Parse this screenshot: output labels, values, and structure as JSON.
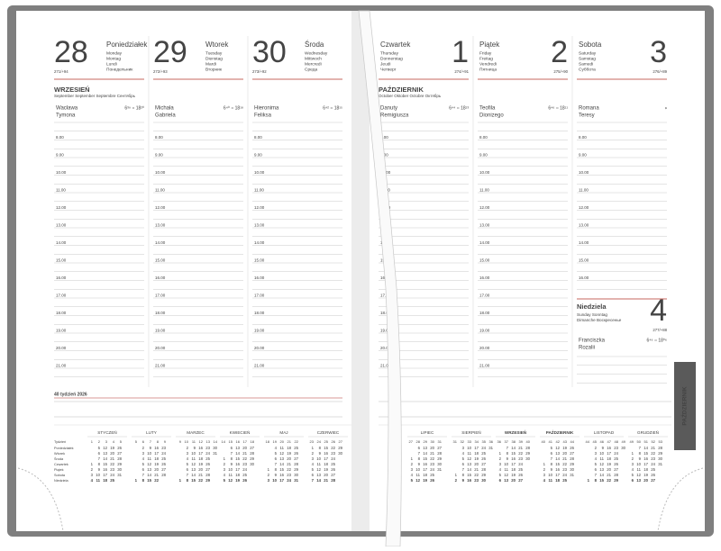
{
  "hours": [
    "8.00",
    "9.00",
    "10.00",
    "11.00",
    "12.00",
    "13.00",
    "14.00",
    "15.00",
    "16.00",
    "17.00",
    "18.00",
    "19.00",
    "20.00",
    "21.00"
  ],
  "left_page": {
    "days": [
      {
        "number": 28,
        "name": "Poniedziałek",
        "translations": [
          "Monday",
          "Montag",
          "Lundi",
          "Понедельник"
        ],
        "code": "271/+94",
        "names": [
          "Wacława",
          "Tymona"
        ],
        "sun": "6³⁹ ○ 18²⁰"
      },
      {
        "number": 29,
        "name": "Wtorek",
        "translations": [
          "Tuesday",
          "Dienstag",
          "Mardi",
          "Вторник"
        ],
        "code": "272/+93",
        "names": [
          "Michała",
          "Gabriela"
        ],
        "sun": "6⁴⁰ ○ 18¹⁸"
      },
      {
        "number": 30,
        "name": "Środa",
        "translations": [
          "Wednesday",
          "Mittwoch",
          "Mercredi",
          "Среда"
        ],
        "code": "273/+92",
        "names": [
          "Hieronima",
          "Feliksa"
        ],
        "sun": "6⁴² ○ 18¹⁵"
      }
    ],
    "month": {
      "title": "WRZESIEŃ",
      "translations": "September September Septembre Сентябрь"
    },
    "week_label": "40 tydzień 2026",
    "calendar": {
      "week_label": "Tydzień",
      "weekdays": [
        "Poniedziałek",
        "Wtorek",
        "Środa",
        "Czwartek",
        "Piątek",
        "Sobota",
        "Niedziela"
      ],
      "months": [
        {
          "title": "STYCZEŃ",
          "weeks": [
            1,
            2,
            3,
            4,
            5
          ],
          "days": [
            [
              null,
              5,
              12,
              19,
              26
            ],
            [
              null,
              6,
              13,
              20,
              27
            ],
            [
              null,
              7,
              14,
              21,
              28
            ],
            [
              1,
              8,
              15,
              22,
              29
            ],
            [
              2,
              9,
              16,
              23,
              30
            ],
            [
              3,
              10,
              17,
              24,
              31
            ],
            [
              4,
              11,
              18,
              25,
              null
            ]
          ]
        },
        {
          "title": "LUTY",
          "weeks": [
            5,
            6,
            7,
            8,
            9
          ],
          "days": [
            [
              null,
              2,
              9,
              16,
              23
            ],
            [
              null,
              3,
              10,
              17,
              24
            ],
            [
              null,
              4,
              11,
              18,
              25
            ],
            [
              null,
              5,
              12,
              19,
              26
            ],
            [
              null,
              6,
              13,
              20,
              27
            ],
            [
              null,
              7,
              14,
              21,
              28
            ],
            [
              1,
              8,
              15,
              22,
              null
            ]
          ]
        },
        {
          "title": "MARZEC",
          "weeks": [
            9,
            10,
            11,
            12,
            13,
            14
          ],
          "days": [
            [
              null,
              2,
              9,
              16,
              23,
              30
            ],
            [
              null,
              3,
              10,
              17,
              24,
              31
            ],
            [
              null,
              4,
              11,
              18,
              25,
              null
            ],
            [
              null,
              5,
              12,
              19,
              26,
              null
            ],
            [
              null,
              6,
              13,
              20,
              27,
              null
            ],
            [
              null,
              7,
              14,
              21,
              28,
              null
            ],
            [
              1,
              8,
              15,
              22,
              29,
              null
            ]
          ]
        },
        {
          "title": "KWIECIEŃ",
          "weeks": [
            14,
            15,
            16,
            17,
            18
          ],
          "days": [
            [
              null,
              6,
              13,
              20,
              27
            ],
            [
              null,
              7,
              14,
              21,
              28
            ],
            [
              1,
              8,
              15,
              22,
              29
            ],
            [
              2,
              9,
              16,
              23,
              30
            ],
            [
              3,
              10,
              17,
              24,
              null
            ],
            [
              4,
              11,
              18,
              25,
              null
            ],
            [
              5,
              12,
              19,
              26,
              null
            ]
          ]
        },
        {
          "title": "MAJ",
          "weeks": [
            18,
            19,
            20,
            21,
            22
          ],
          "days": [
            [
              null,
              4,
              11,
              18,
              25
            ],
            [
              null,
              5,
              12,
              19,
              26
            ],
            [
              null,
              6,
              13,
              20,
              27
            ],
            [
              null,
              7,
              14,
              21,
              28
            ],
            [
              1,
              8,
              15,
              22,
              29
            ],
            [
              2,
              9,
              16,
              23,
              30
            ],
            [
              3,
              10,
              17,
              24,
              31
            ]
          ]
        },
        {
          "title": "CZERWIEC",
          "weeks": [
            23,
            24,
            25,
            26,
            27
          ],
          "days": [
            [
              1,
              8,
              15,
              22,
              29
            ],
            [
              2,
              9,
              16,
              23,
              30
            ],
            [
              3,
              10,
              17,
              24,
              null
            ],
            [
              4,
              11,
              18,
              25,
              null
            ],
            [
              5,
              12,
              19,
              26,
              null
            ],
            [
              6,
              13,
              20,
              27,
              null
            ],
            [
              7,
              14,
              21,
              28,
              null
            ]
          ]
        }
      ]
    }
  },
  "right_page": {
    "days": [
      {
        "number": 1,
        "name": "Czwartek",
        "translations": [
          "Thursday",
          "Donnerstag",
          "Jeudi",
          "Четверг"
        ],
        "code": "274/+91",
        "names": [
          "Danuty",
          "Remigiusza"
        ],
        "sun": "6⁴⁴ ○ 18¹³"
      },
      {
        "number": 2,
        "name": "Piątek",
        "translations": [
          "Friday",
          "Freitag",
          "Vendredi",
          "Пятница"
        ],
        "code": "275/+90",
        "names": [
          "Teofila",
          "Dionizego"
        ],
        "sun": "6⁴⁶ ○ 18¹¹"
      },
      {
        "number": 3,
        "name": "Sobota",
        "translations": [
          "Saturday",
          "Samstag",
          "Samedi",
          "Суббота"
        ],
        "code": "276/+89",
        "names": [
          "Romana",
          "Teresy"
        ],
        "sun": "◑"
      }
    ],
    "month": {
      "title": "PAŹDZIERNIK",
      "translations": "October Oktober Octobre Октябрь"
    },
    "sunday": {
      "number": 4,
      "name": "Niedziela",
      "translations": [
        "Sunday Sonntag",
        "Dimanche Воскресенье"
      ],
      "code": "277/+88",
      "names": [
        "Franciszka",
        "Rozalii"
      ],
      "sun": "6⁴⁹ ○ 18⁰⁶"
    },
    "tab": "PAŹDZIERNIK",
    "calendar": {
      "months": [
        {
          "title": "LIPIEC",
          "weeks": [
            27,
            28,
            29,
            30,
            31
          ],
          "days": [
            [
              null,
              6,
              13,
              20,
              27
            ],
            [
              null,
              7,
              14,
              21,
              28
            ],
            [
              1,
              8,
              15,
              22,
              29
            ],
            [
              2,
              9,
              16,
              23,
              30
            ],
            [
              3,
              10,
              17,
              24,
              31
            ],
            [
              4,
              11,
              18,
              25,
              null
            ],
            [
              5,
              12,
              19,
              26,
              null
            ]
          ]
        },
        {
          "title": "SIERPIEŃ",
          "weeks": [
            31,
            32,
            33,
            34,
            35,
            36
          ],
          "days": [
            [
              null,
              3,
              10,
              17,
              24,
              31
            ],
            [
              null,
              4,
              11,
              18,
              25,
              null
            ],
            [
              null,
              5,
              12,
              19,
              26,
              null
            ],
            [
              null,
              6,
              13,
              20,
              27,
              null
            ],
            [
              null,
              7,
              14,
              21,
              28,
              null
            ],
            [
              1,
              8,
              15,
              22,
              29,
              null
            ],
            [
              2,
              9,
              16,
              23,
              30,
              null
            ]
          ]
        },
        {
          "title": "WRZESIEŃ",
          "weeks": [
            36,
            37,
            38,
            39,
            40
          ],
          "days": [
            [
              null,
              7,
              14,
              21,
              28
            ],
            [
              1,
              8,
              15,
              22,
              29
            ],
            [
              2,
              9,
              16,
              23,
              30
            ],
            [
              3,
              10,
              17,
              24,
              null
            ],
            [
              4,
              11,
              18,
              25,
              null
            ],
            [
              5,
              12,
              19,
              26,
              null
            ],
            [
              6,
              13,
              20,
              27,
              null
            ]
          ]
        },
        {
          "title": "PAŹDZIERNIK",
          "weeks": [
            40,
            41,
            42,
            43,
            44
          ],
          "days": [
            [
              null,
              5,
              12,
              19,
              26
            ],
            [
              null,
              6,
              13,
              20,
              27
            ],
            [
              null,
              7,
              14,
              21,
              28
            ],
            [
              1,
              8,
              15,
              22,
              29
            ],
            [
              2,
              9,
              16,
              23,
              30
            ],
            [
              3,
              10,
              17,
              24,
              31
            ],
            [
              4,
              11,
              18,
              25,
              null
            ]
          ]
        },
        {
          "title": "LISTOPAD",
          "weeks": [
            44,
            45,
            46,
            47,
            48,
            49
          ],
          "days": [
            [
              null,
              2,
              9,
              16,
              23,
              30
            ],
            [
              null,
              3,
              10,
              17,
              24,
              null
            ],
            [
              null,
              4,
              11,
              18,
              25,
              null
            ],
            [
              null,
              5,
              12,
              19,
              26,
              null
            ],
            [
              null,
              6,
              13,
              20,
              27,
              null
            ],
            [
              null,
              7,
              14,
              21,
              28,
              null
            ],
            [
              1,
              8,
              15,
              22,
              29,
              null
            ]
          ]
        },
        {
          "title": "GRUDZIEŃ",
          "weeks": [
            49,
            50,
            51,
            52,
            53
          ],
          "days": [
            [
              null,
              7,
              14,
              21,
              28
            ],
            [
              1,
              8,
              15,
              22,
              29
            ],
            [
              2,
              9,
              16,
              23,
              30
            ],
            [
              3,
              10,
              17,
              24,
              31
            ],
            [
              4,
              11,
              18,
              25,
              null
            ],
            [
              5,
              12,
              19,
              26,
              null
            ],
            [
              6,
              13,
              20,
              27,
              null
            ]
          ]
        }
      ]
    }
  }
}
